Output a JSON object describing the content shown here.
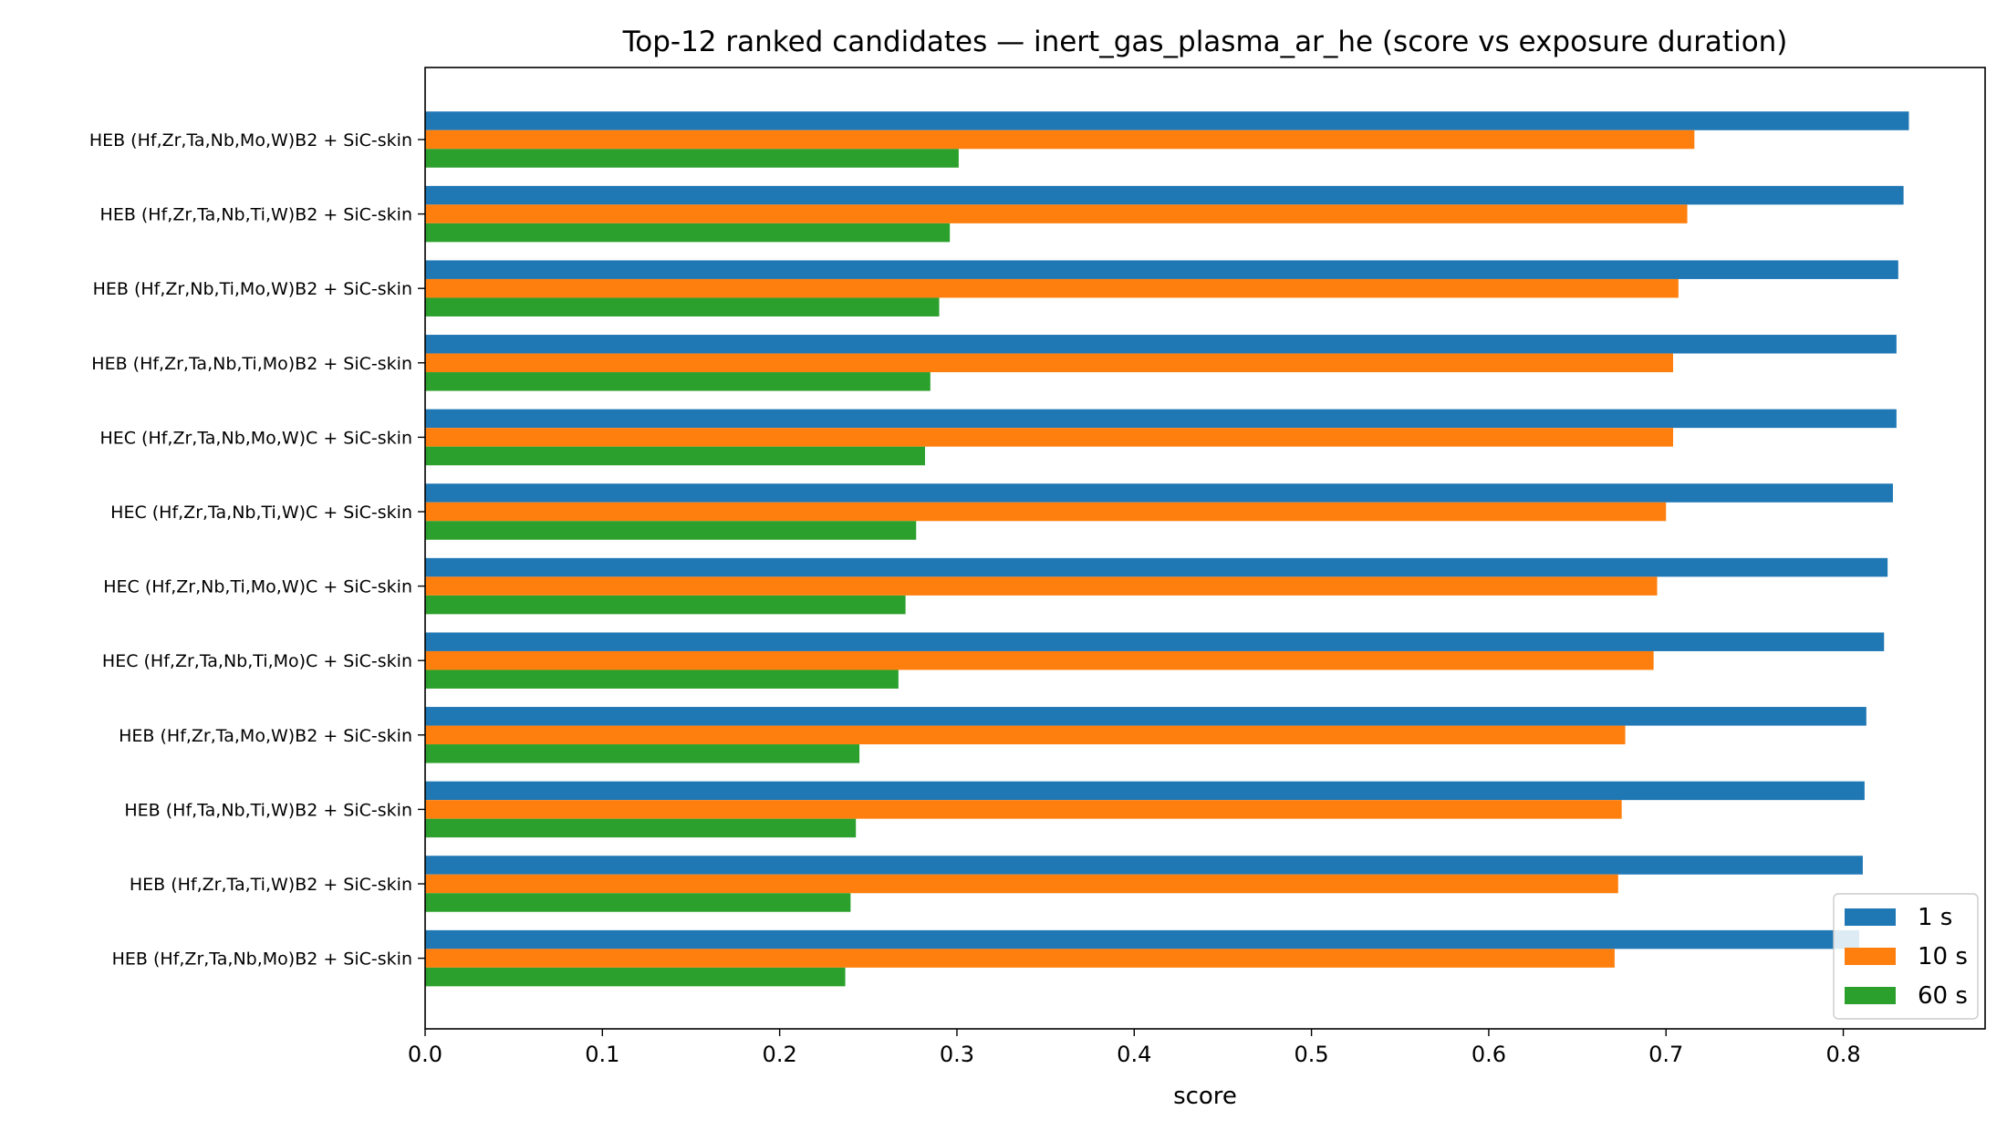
{
  "chart_data": {
    "type": "bar",
    "orientation": "horizontal",
    "title": "Top-12 ranked candidates — inert_gas_plasma_ar_he (score vs exposure duration)",
    "xlabel": "score",
    "ylabel": "",
    "xlim": [
      0.0,
      0.88
    ],
    "xticks": [
      "0.0",
      "0.1",
      "0.2",
      "0.3",
      "0.4",
      "0.5",
      "0.6",
      "0.7",
      "0.8"
    ],
    "grid": false,
    "legend_position": "lower-right",
    "categories": [
      "HEB (Hf,Zr,Ta,Nb,Mo,W)B2 + SiC-skin",
      "HEB (Hf,Zr,Ta,Nb,Ti,W)B2 + SiC-skin",
      "HEB (Hf,Zr,Nb,Ti,Mo,W)B2 + SiC-skin",
      "HEB (Hf,Zr,Ta,Nb,Ti,Mo)B2 + SiC-skin",
      "HEC (Hf,Zr,Ta,Nb,Mo,W)C + SiC-skin",
      "HEC (Hf,Zr,Ta,Nb,Ti,W)C + SiC-skin",
      "HEC (Hf,Zr,Nb,Ti,Mo,W)C + SiC-skin",
      "HEC (Hf,Zr,Ta,Nb,Ti,Mo)C + SiC-skin",
      "HEB (Hf,Zr,Ta,Mo,W)B2 + SiC-skin",
      "HEB (Hf,Ta,Nb,Ti,W)B2 + SiC-skin",
      "HEB (Hf,Zr,Ta,Ti,W)B2 + SiC-skin",
      "HEB (Hf,Zr,Ta,Nb,Mo)B2 + SiC-skin"
    ],
    "series": [
      {
        "name": "1 s",
        "color": "#1f77b4",
        "values": [
          0.837,
          0.834,
          0.831,
          0.83,
          0.83,
          0.828,
          0.825,
          0.823,
          0.813,
          0.812,
          0.811,
          0.809
        ]
      },
      {
        "name": "10 s",
        "color": "#ff7f0e",
        "values": [
          0.716,
          0.712,
          0.707,
          0.704,
          0.704,
          0.7,
          0.695,
          0.693,
          0.677,
          0.675,
          0.673,
          0.671
        ]
      },
      {
        "name": "60 s",
        "color": "#2ca02c",
        "values": [
          0.301,
          0.296,
          0.29,
          0.285,
          0.282,
          0.277,
          0.271,
          0.267,
          0.245,
          0.243,
          0.24,
          0.237
        ]
      }
    ]
  }
}
